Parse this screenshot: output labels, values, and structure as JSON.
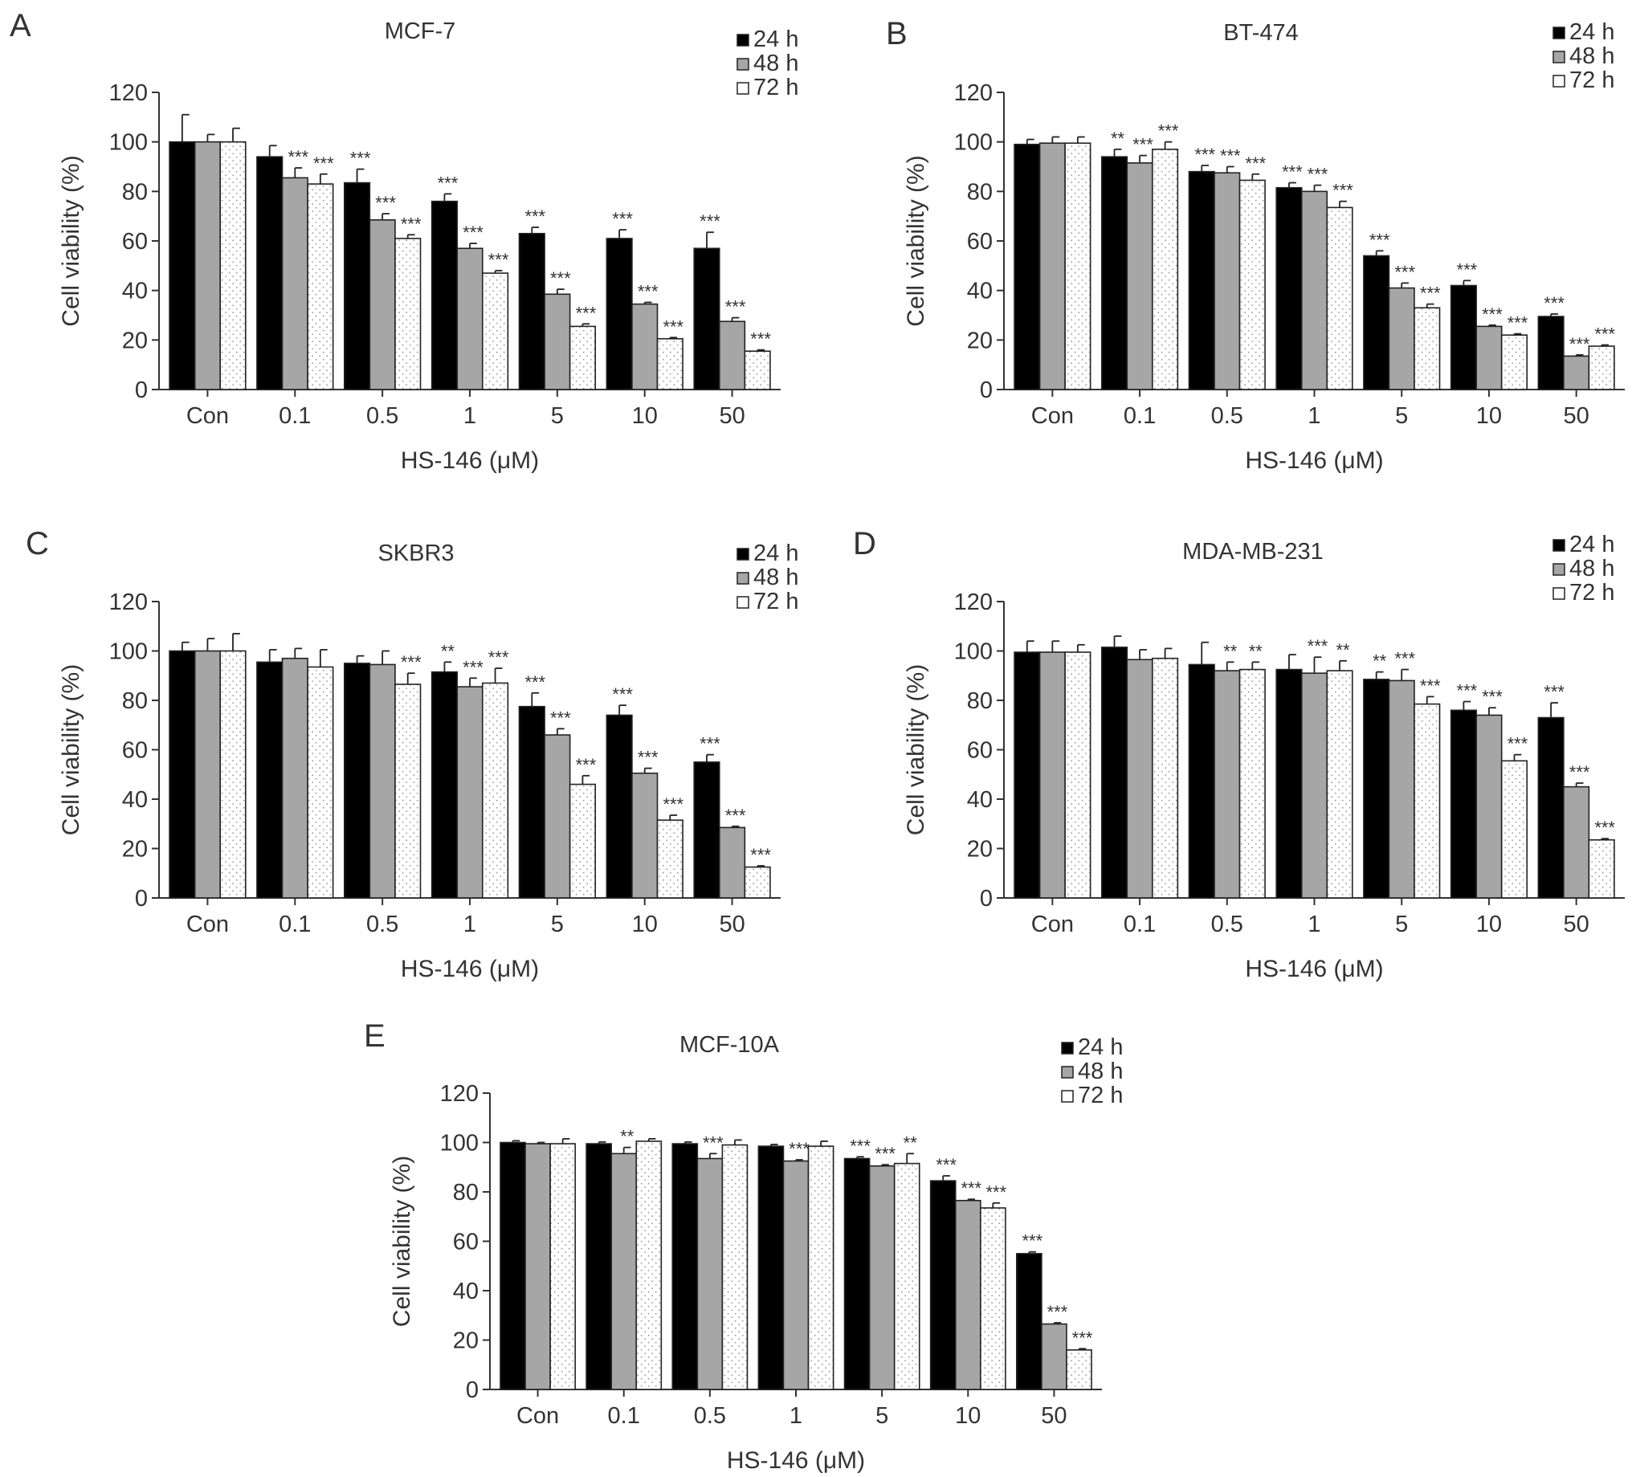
{
  "figure": {
    "fill_colors": {
      "24 h": "#000000",
      "48 h": "#a6a6a6",
      "72 h": "#ffffff"
    },
    "legend_placement": "top-right",
    "grid": false
  },
  "chart_data": [
    {
      "panel": "A",
      "type": "bar",
      "title": "MCF-7",
      "xlabel": "HS-146 (μM)",
      "ylabel": "Cell viability (%)",
      "ylim": [
        0,
        120
      ],
      "yticks": [
        0,
        20,
        40,
        60,
        80,
        100,
        120
      ],
      "categories": [
        "Con",
        "0.1",
        "0.5",
        "1",
        "5",
        "10",
        "50"
      ],
      "series": [
        {
          "name": "24 h",
          "values": [
            100,
            94,
            83.5,
            76,
            63,
            61,
            57
          ],
          "errors": [
            11,
            4.5,
            5.5,
            3,
            2.5,
            3.5,
            6.5
          ],
          "significance": [
            "",
            "",
            "***",
            "***",
            "***",
            "***",
            "***"
          ]
        },
        {
          "name": "48 h",
          "values": [
            100,
            85.5,
            68.5,
            57,
            38.5,
            34.5,
            27.5
          ],
          "errors": [
            3,
            4,
            2.5,
            2,
            2,
            0.7,
            1.5
          ],
          "significance": [
            "",
            "***",
            "***",
            "***",
            "***",
            "***",
            "***"
          ]
        },
        {
          "name": "72 h",
          "values": [
            100,
            83,
            61,
            47,
            25.5,
            20.5,
            15.5
          ],
          "errors": [
            5.5,
            4,
            1.5,
            1,
            1,
            0.5,
            0.5
          ],
          "significance": [
            "",
            "***",
            "***",
            "***",
            "***",
            "***",
            "***"
          ]
        }
      ]
    },
    {
      "panel": "B",
      "type": "bar",
      "title": "BT-474",
      "xlabel": "HS-146 (μM)",
      "ylabel": "Cell viability (%)",
      "ylim": [
        0,
        120
      ],
      "yticks": [
        0,
        20,
        40,
        60,
        80,
        100,
        120
      ],
      "categories": [
        "Con",
        "0.1",
        "0.5",
        "1",
        "5",
        "10",
        "50"
      ],
      "series": [
        {
          "name": "24 h",
          "values": [
            99,
            94,
            88,
            81.5,
            54,
            42,
            29.5
          ],
          "errors": [
            2,
            3,
            2.5,
            2,
            2,
            2,
            1
          ],
          "significance": [
            "",
            "**",
            "***",
            "***",
            "***",
            "***",
            "***"
          ]
        },
        {
          "name": "48 h",
          "values": [
            99.5,
            91.5,
            87.5,
            80,
            41,
            25.5,
            13.5
          ],
          "errors": [
            2.5,
            3,
            2.5,
            2.5,
            2,
            0.5,
            0.5
          ],
          "significance": [
            "",
            "***",
            "***",
            "***",
            "***",
            "***",
            "***"
          ]
        },
        {
          "name": "72 h",
          "values": [
            99.5,
            97,
            84.5,
            73.5,
            33,
            22,
            17.5
          ],
          "errors": [
            2.5,
            3,
            2.5,
            2.5,
            1.5,
            0.5,
            0.5
          ],
          "significance": [
            "",
            "***",
            "***",
            "***",
            "***",
            "***",
            "***"
          ]
        }
      ]
    },
    {
      "panel": "C",
      "type": "bar",
      "title": "SKBR3",
      "xlabel": "HS-146 (μM)",
      "ylabel": "Cell viability (%)",
      "ylim": [
        0,
        120
      ],
      "yticks": [
        0,
        20,
        40,
        60,
        80,
        100,
        120
      ],
      "categories": [
        "Con",
        "0.1",
        "0.5",
        "1",
        "5",
        "10",
        "50"
      ],
      "series": [
        {
          "name": "24 h",
          "values": [
            100,
            95.5,
            95,
            91.5,
            77.5,
            74,
            55
          ],
          "errors": [
            3.5,
            5,
            3,
            4,
            5.5,
            4,
            3
          ],
          "significance": [
            "",
            "",
            "",
            "**",
            "***",
            "***",
            "***"
          ]
        },
        {
          "name": "48 h",
          "values": [
            100,
            97,
            94.5,
            85.5,
            66,
            50.5,
            28.5
          ],
          "errors": [
            5,
            4,
            5.5,
            3.5,
            2.5,
            2,
            0.5
          ],
          "significance": [
            "",
            "",
            "",
            "***",
            "***",
            "***",
            "***"
          ]
        },
        {
          "name": "72 h",
          "values": [
            100,
            93.5,
            86.5,
            87,
            46,
            31.5,
            12.5
          ],
          "errors": [
            7,
            7,
            4.5,
            6,
            3.5,
            2,
            0.5
          ],
          "significance": [
            "",
            "",
            "***",
            "***",
            "***",
            "***",
            "***"
          ]
        }
      ]
    },
    {
      "panel": "D",
      "type": "bar",
      "title": "MDA-MB-231",
      "xlabel": "HS-146 (μM)",
      "ylabel": "Cell viability (%)",
      "ylim": [
        0,
        120
      ],
      "yticks": [
        0,
        20,
        40,
        60,
        80,
        100,
        120
      ],
      "categories": [
        "Con",
        "0.1",
        "0.5",
        "1",
        "5",
        "10",
        "50"
      ],
      "series": [
        {
          "name": "24 h",
          "values": [
            99.5,
            101.5,
            94.5,
            92.5,
            88.5,
            76,
            73
          ],
          "errors": [
            4.5,
            4.5,
            9,
            6,
            3,
            3.5,
            6
          ],
          "significance": [
            "",
            "",
            "",
            "",
            "**",
            "***",
            "***"
          ]
        },
        {
          "name": "48 h",
          "values": [
            99.5,
            96.5,
            92,
            91,
            88,
            74,
            45
          ],
          "errors": [
            4.5,
            4,
            3.5,
            6.5,
            4.5,
            3,
            1.5
          ],
          "significance": [
            "",
            "",
            "**",
            "***",
            "***",
            "***",
            "***"
          ]
        },
        {
          "name": "72 h",
          "values": [
            99.5,
            97,
            92.5,
            92,
            78.5,
            55.5,
            23.5
          ],
          "errors": [
            3,
            4,
            3,
            4,
            3,
            2.5,
            0.5
          ],
          "significance": [
            "",
            "",
            "**",
            "**",
            "***",
            "***",
            "***"
          ]
        }
      ]
    },
    {
      "panel": "E",
      "type": "bar",
      "title": "MCF-10A",
      "xlabel": "HS-146 (μM)",
      "ylabel": "Cell viability (%)",
      "ylim": [
        0,
        120
      ],
      "yticks": [
        0,
        20,
        40,
        60,
        80,
        100,
        120
      ],
      "categories": [
        "Con",
        "0.1",
        "0.5",
        "1",
        "5",
        "10",
        "50"
      ],
      "series": [
        {
          "name": "24 h",
          "values": [
            100,
            99.5,
            99.5,
            98.5,
            93.5,
            84.5,
            55
          ],
          "errors": [
            0.7,
            0.7,
            0.7,
            0.7,
            0.7,
            2,
            0.7
          ],
          "significance": [
            "",
            "",
            "",
            "",
            "***",
            "***",
            "***"
          ]
        },
        {
          "name": "48 h",
          "values": [
            99.5,
            95.5,
            93.5,
            92.5,
            90.5,
            76.5,
            26.5
          ],
          "errors": [
            0.5,
            2.5,
            2,
            0.5,
            0.5,
            0.5,
            0.5
          ],
          "significance": [
            "",
            "**",
            "***",
            "***",
            "***",
            "***",
            "***"
          ]
        },
        {
          "name": "72 h",
          "values": [
            99.5,
            100.5,
            99,
            98.5,
            91.5,
            73.5,
            16
          ],
          "errors": [
            2,
            1,
            2,
            2,
            4,
            2,
            0.5
          ],
          "significance": [
            "",
            "",
            "",
            "",
            "**",
            "***",
            "***"
          ]
        }
      ]
    }
  ]
}
